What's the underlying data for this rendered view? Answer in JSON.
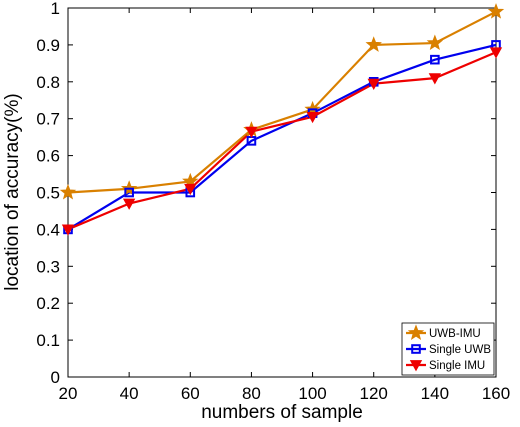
{
  "chart_data": {
    "type": "line",
    "title": "",
    "xlabel": "numbers of sample",
    "ylabel": "location of accuracy(%)",
    "x": [
      20,
      40,
      60,
      80,
      100,
      120,
      140,
      160
    ],
    "xlim": [
      20,
      160
    ],
    "ylim": [
      0,
      1
    ],
    "xticks": [
      "20",
      "40",
      "60",
      "80",
      "100",
      "120",
      "140",
      "160"
    ],
    "yticks": [
      "0",
      "0.1",
      "0.2",
      "0.3",
      "0.4",
      "0.5",
      "0.6",
      "0.7",
      "0.8",
      "0.9",
      "1"
    ],
    "grid": false,
    "legend_position": "bottom-right",
    "series": [
      {
        "name": "UWB-IMU",
        "marker": "star",
        "color": "#d98000",
        "values": [
          0.5,
          0.51,
          0.53,
          0.67,
          0.725,
          0.9,
          0.905,
          0.99
        ]
      },
      {
        "name": "Single UWB",
        "marker": "square",
        "color": "#0000ee",
        "values": [
          0.4,
          0.5,
          0.5,
          0.64,
          0.715,
          0.8,
          0.86,
          0.9
        ]
      },
      {
        "name": "Single IMU",
        "marker": "triangle-down",
        "color": "#ee0000",
        "values": [
          0.4,
          0.47,
          0.51,
          0.665,
          0.705,
          0.795,
          0.81,
          0.88
        ]
      }
    ]
  }
}
